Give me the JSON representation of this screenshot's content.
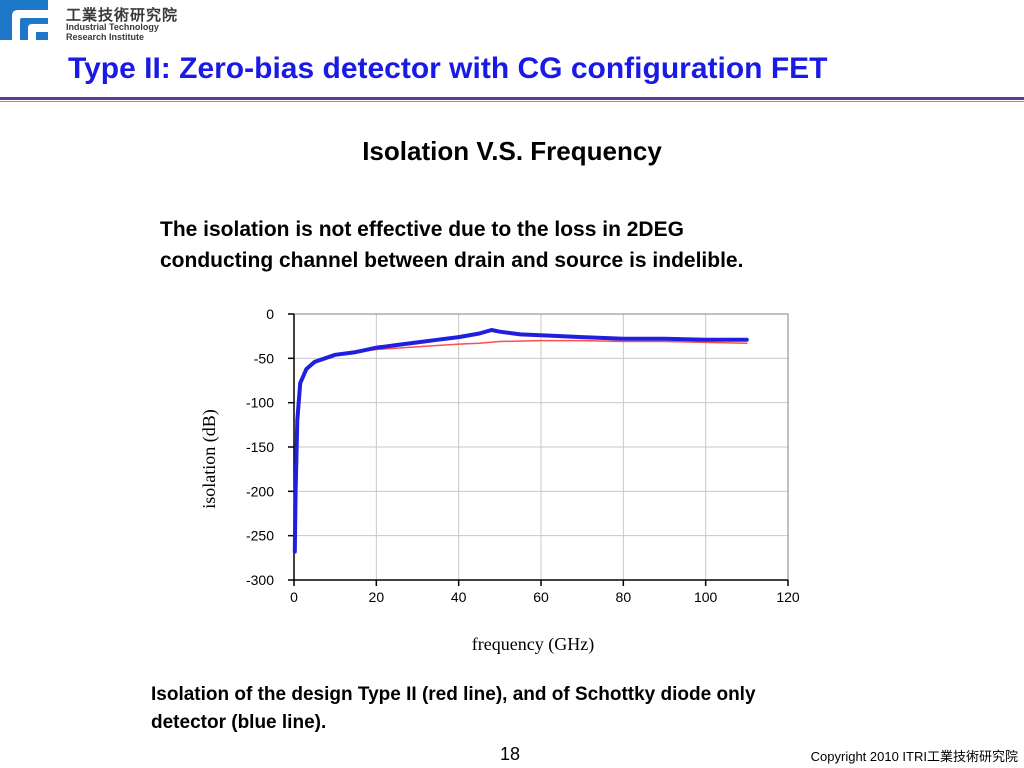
{
  "header": {
    "org_name_cn": "工業技術研究院",
    "org_name_en_1": "Industrial Technology",
    "org_name_en_2": "Research Institute"
  },
  "slide": {
    "title": "Type II: Zero-bias detector with CG configuration FET",
    "subtitle": "Isolation V.S. Frequency",
    "description_1": "The isolation is not effective due to the loss in 2DEG",
    "description_2": "conducting channel between drain and source is indelible.",
    "caption_1": "Isolation of the design Type II (red line), and of Schottky diode only",
    "caption_2": "detector (blue line).",
    "page_number": "18",
    "copyright": "Copyright 2010 ITRI工業技術研究院"
  },
  "colors": {
    "title": "#1a1ae6",
    "rule": "#5c3a8c",
    "red_series": "#ff4d4d",
    "blue_series": "#1f1fe0"
  },
  "chart_data": {
    "type": "line",
    "xlabel": "frequency (GHz)",
    "ylabel": "isolation (dB)",
    "xlim": [
      0,
      120
    ],
    "ylim": [
      -300,
      0
    ],
    "xticks": [
      0,
      20,
      40,
      60,
      80,
      100,
      120
    ],
    "yticks": [
      0,
      -50,
      -100,
      -150,
      -200,
      -250,
      -300
    ],
    "xtick_labels": [
      "0",
      "20",
      "40",
      "60",
      "80",
      "100",
      "120"
    ],
    "ytick_labels": [
      "0",
      "-50",
      "-100",
      "-150",
      "-200",
      "-250",
      "-300"
    ],
    "grid": true,
    "series": [
      {
        "color": "#ff4d4d",
        "width": 1.5,
        "x": [
          0.2,
          0.4,
          0.8,
          1.5,
          3,
          5,
          10,
          15,
          20,
          30,
          40,
          45,
          50,
          60,
          70,
          80,
          90,
          100,
          110
        ],
        "y": [
          -262,
          -200,
          -120,
          -75,
          -62,
          -55,
          -47,
          -43,
          -40,
          -37,
          -34,
          -33,
          -31,
          -30,
          -30,
          -31,
          -31,
          -32,
          -33
        ]
      },
      {
        "color": "#1f1fe0",
        "width": 4,
        "x": [
          0.2,
          0.4,
          0.8,
          1.5,
          3,
          5,
          10,
          15,
          20,
          25,
          30,
          35,
          40,
          45,
          48,
          50,
          55,
          60,
          70,
          80,
          90,
          100,
          110
        ],
        "y": [
          -268,
          -200,
          -120,
          -78,
          -62,
          -54,
          -46,
          -43,
          -38,
          -35,
          -32,
          -29,
          -26,
          -22,
          -18,
          -20,
          -23,
          -24,
          -26,
          -28,
          -28,
          -29,
          -29
        ]
      }
    ]
  }
}
